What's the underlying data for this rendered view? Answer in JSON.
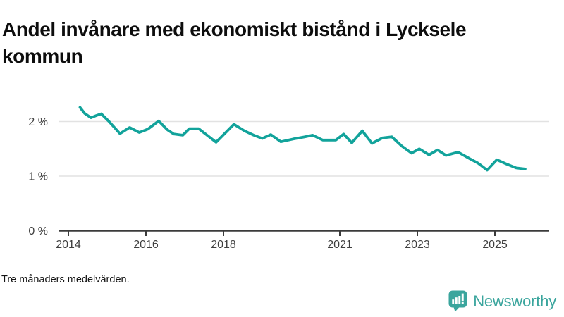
{
  "title": "Andel invånare med ekonomiskt bistånd i Lycksele kommun",
  "footnote": "Tre månaders medelvärden.",
  "brand": {
    "name": "Newsworthy",
    "color": "#3aa59d",
    "icon": "bar-chart-speech-bubble-icon"
  },
  "colors": {
    "line": "#12a39b",
    "grid": "#e2e2e2",
    "axis": "#3b3b3b",
    "tick_text": "#3f3f3f"
  },
  "chart_data": {
    "type": "line",
    "title": "Andel invånare med ekonomiskt bistånd i Lycksele kommun",
    "subtitle": "Tre månaders medelvärden.",
    "unit": "%",
    "xlabel": "",
    "ylabel": "",
    "grid": "horizontal-only",
    "legend": "none",
    "xlim": [
      2013.75,
      2026.4
    ],
    "ylim": [
      0,
      2.6
    ],
    "x_ticks": [
      {
        "v": 2014,
        "label": "2014"
      },
      {
        "v": 2016,
        "label": "2016"
      },
      {
        "v": 2018,
        "label": "2018"
      },
      {
        "v": 2021,
        "label": "2021"
      },
      {
        "v": 2023,
        "label": "2023"
      },
      {
        "v": 2025,
        "label": "2025"
      }
    ],
    "y_ticks": [
      {
        "v": 0,
        "label": "0 %"
      },
      {
        "v": 1,
        "label": "1 %"
      },
      {
        "v": 2,
        "label": "2 %"
      }
    ],
    "series": [
      {
        "name": "Andel invånare med ekonomiskt bistånd",
        "points": [
          [
            2014.3,
            2.26
          ],
          [
            2014.42,
            2.15
          ],
          [
            2014.58,
            2.07
          ],
          [
            2014.72,
            2.11
          ],
          [
            2014.85,
            2.14
          ],
          [
            2015.05,
            2.0
          ],
          [
            2015.33,
            1.78
          ],
          [
            2015.58,
            1.89
          ],
          [
            2015.83,
            1.8
          ],
          [
            2016.05,
            1.86
          ],
          [
            2016.33,
            2.01
          ],
          [
            2016.55,
            1.85
          ],
          [
            2016.72,
            1.77
          ],
          [
            2016.95,
            1.75
          ],
          [
            2017.12,
            1.87
          ],
          [
            2017.36,
            1.87
          ],
          [
            2017.81,
            1.62
          ],
          [
            2018.27,
            1.95
          ],
          [
            2018.54,
            1.83
          ],
          [
            2018.78,
            1.75
          ],
          [
            2019.0,
            1.69
          ],
          [
            2019.22,
            1.76
          ],
          [
            2019.48,
            1.63
          ],
          [
            2019.8,
            1.68
          ],
          [
            2020.1,
            1.72
          ],
          [
            2020.3,
            1.75
          ],
          [
            2020.56,
            1.66
          ],
          [
            2020.9,
            1.66
          ],
          [
            2021.1,
            1.77
          ],
          [
            2021.31,
            1.61
          ],
          [
            2021.58,
            1.83
          ],
          [
            2021.83,
            1.6
          ],
          [
            2022.1,
            1.7
          ],
          [
            2022.34,
            1.72
          ],
          [
            2022.6,
            1.55
          ],
          [
            2022.85,
            1.42
          ],
          [
            2023.05,
            1.5
          ],
          [
            2023.3,
            1.39
          ],
          [
            2023.52,
            1.48
          ],
          [
            2023.74,
            1.38
          ],
          [
            2024.05,
            1.44
          ],
          [
            2024.35,
            1.32
          ],
          [
            2024.56,
            1.24
          ],
          [
            2024.8,
            1.11
          ],
          [
            2025.05,
            1.3
          ],
          [
            2025.3,
            1.22
          ],
          [
            2025.55,
            1.15
          ],
          [
            2025.78,
            1.13
          ]
        ]
      }
    ]
  }
}
